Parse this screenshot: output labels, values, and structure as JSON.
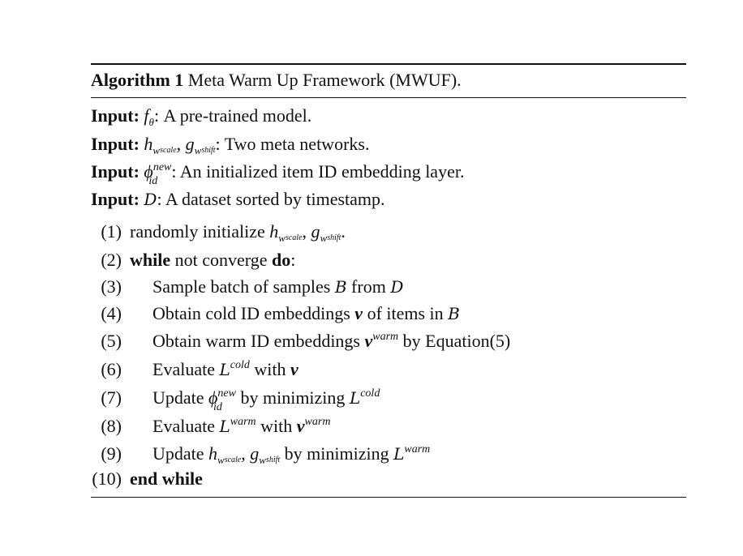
{
  "algorithm": {
    "label": "Algorithm 1",
    "title": "Meta Warm Up Framework (MWUF)."
  },
  "inputs": [
    {
      "label": "Input:",
      "text": ": A pre-trained model."
    },
    {
      "label": "Input:",
      "text": ": Two meta networks."
    },
    {
      "label": "Input:",
      "text": ": An initialized item ID embedding layer."
    },
    {
      "label": "Input:",
      "text": ": A dataset sorted by timestamp."
    }
  ],
  "steps": [
    {
      "num": "(1)",
      "text": "randomly initialize"
    },
    {
      "num": "(2)",
      "kw1": "while",
      "text": "not converge",
      "kw2": "do",
      "after": ":"
    },
    {
      "num": "(3)",
      "text": "Sample batch of samples",
      "mid": "from"
    },
    {
      "num": "(4)",
      "text": "Obtain cold ID embeddings",
      "mid": "of items in"
    },
    {
      "num": "(5)",
      "text": "Obtain warm ID embeddings",
      "mid": "by Equation(5)"
    },
    {
      "num": "(6)",
      "text": "Evaluate",
      "mid": "with"
    },
    {
      "num": "(7)",
      "text": "Update",
      "mid": "by minimizing"
    },
    {
      "num": "(8)",
      "text": "Evaluate",
      "mid": "with"
    },
    {
      "num": "(9)",
      "text": "Update",
      "mid": "by minimizing"
    },
    {
      "num": "(10)",
      "kw1": "end while"
    }
  ],
  "symbols": {
    "f": "f",
    "theta": "θ",
    "h": "h",
    "g": "g",
    "w": "w",
    "scale": "scale",
    "shift": "shift",
    "phi": "ϕ",
    "new": "new",
    "id": "id",
    "D": "D",
    "B": "B",
    "L": "L",
    "v": "v",
    "warm": "warm",
    "cold": "cold",
    "comma": ",",
    "period": "."
  }
}
